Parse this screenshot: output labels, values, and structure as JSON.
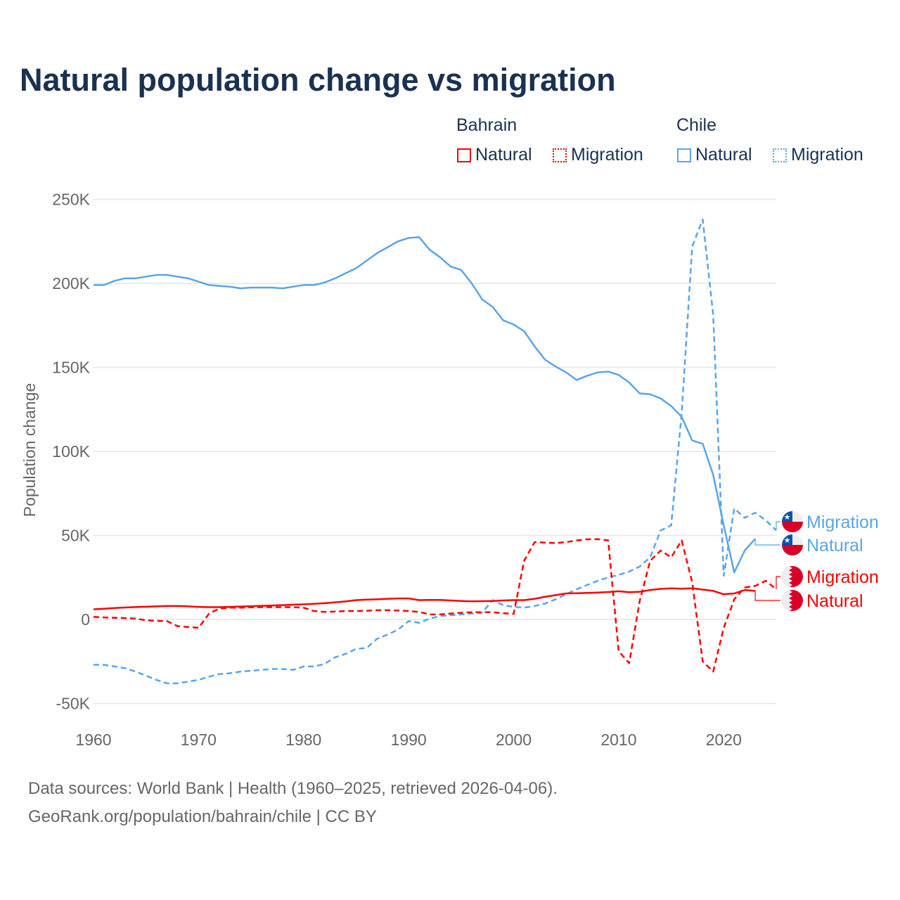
{
  "title": "Natural population change vs migration",
  "legend": {
    "groups": [
      {
        "name": "Bahrain",
        "color": "#ff0000",
        "items": [
          "Natural",
          "Migration"
        ]
      },
      {
        "name": "Chile",
        "color": "#5aa5e8",
        "items": [
          "Natural",
          "Migration"
        ]
      }
    ]
  },
  "footer": {
    "line1": "Data sources: World Bank | Health (1960–2025, retrieved 2026-04-06).",
    "line2": "GeoRank.org/population/bahrain/chile | CC BY"
  },
  "chart_data": {
    "type": "line",
    "title": "Natural population change vs migration",
    "xlabel": "",
    "ylabel": "Population change",
    "xlim": [
      1960,
      2025
    ],
    "ylim": [
      -50000,
      250000
    ],
    "x_ticks": [
      "1960",
      "1970",
      "1980",
      "1990",
      "2000",
      "2010",
      "2020"
    ],
    "y_ticks": [
      {
        "v": -50000,
        "label": "-50K"
      },
      {
        "v": 0,
        "label": "0"
      },
      {
        "v": 50000,
        "label": "50K"
      },
      {
        "v": 100000,
        "label": "100K"
      },
      {
        "v": 150000,
        "label": "150K"
      },
      {
        "v": 200000,
        "label": "200K"
      },
      {
        "v": 250000,
        "label": "250K"
      }
    ],
    "grid": true,
    "series": [
      {
        "name": "Chile Natural",
        "country": "Chile",
        "kind": "Natural",
        "color": "#5aa5e8",
        "dash": false,
        "start": 1960,
        "end_label": "Natural",
        "values": [
          199,
          199,
          201.5,
          203,
          203,
          204,
          205,
          205,
          204,
          203,
          201,
          199,
          198.5,
          198,
          197,
          197.5,
          197.5,
          197.5,
          197,
          198,
          199,
          199,
          200.5,
          203,
          206,
          209,
          213.5,
          218,
          221.5,
          225,
          227,
          227.5,
          220,
          215.5,
          210,
          208,
          200,
          190.5,
          186,
          178,
          175.5,
          171.5,
          162.5,
          154.5,
          150.5,
          147,
          142.5,
          145,
          147,
          147.5,
          145.5,
          141,
          134.5,
          134,
          131.5,
          127,
          120.5,
          106.5,
          104.5,
          86,
          56,
          28,
          41,
          48
        ]
      },
      {
        "name": "Chile Migration",
        "country": "Chile",
        "kind": "Migration",
        "color": "#5aa5e8",
        "dash": true,
        "start": 1960,
        "end_label": "Migration",
        "values": [
          -27,
          -27,
          -28,
          -29,
          -31,
          -33.5,
          -36,
          -38,
          -38,
          -37,
          -36,
          -34,
          -32.5,
          -32,
          -31,
          -30.5,
          -30,
          -29.5,
          -29.5,
          -30,
          -28,
          -28,
          -26.5,
          -22.5,
          -20.5,
          -17.5,
          -17,
          -11.5,
          -9,
          -6,
          -1,
          -2,
          0.5,
          2,
          2.5,
          3,
          3.5,
          4,
          11.5,
          8.5,
          7.5,
          7,
          8,
          9.5,
          12,
          15,
          18,
          20.5,
          23,
          25,
          26.5,
          28.5,
          31.5,
          37,
          53,
          56,
          123,
          222,
          238,
          181,
          26,
          66,
          60.5,
          63.5,
          59,
          53
        ]
      },
      {
        "name": "Bahrain Natural",
        "country": "Bahrain",
        "kind": "Natural",
        "color": "#ff0000",
        "dash": false,
        "start": 1960,
        "end_label": "Natural",
        "values": [
          6,
          6.4,
          6.8,
          7.1,
          7.4,
          7.6,
          7.8,
          8,
          8,
          7.8,
          7.5,
          7.3,
          7.3,
          7.5,
          7.7,
          7.9,
          8.1,
          8.3,
          8.5,
          8.8,
          9,
          9.3,
          9.7,
          10.2,
          10.7,
          11.5,
          11.8,
          12,
          12.3,
          12.5,
          12.5,
          11.5,
          11.6,
          11.6,
          11.3,
          11,
          10.8,
          10.9,
          11,
          11.3,
          11.5,
          11.5,
          12.3,
          13.5,
          14.5,
          15.5,
          15.6,
          15.8,
          16,
          16.3,
          16.8,
          16.2,
          16.5,
          17.5,
          18.2,
          18.5,
          18.3,
          18.5,
          17.8,
          17,
          15,
          15.5,
          17.5,
          17
        ]
      },
      {
        "name": "Bahrain Migration",
        "country": "Bahrain",
        "kind": "Migration",
        "color": "#ff0000",
        "dash": true,
        "start": 1960,
        "end_label": "Migration",
        "values": [
          1.5,
          1.2,
          1,
          0.8,
          0.5,
          -0.5,
          -0.8,
          -1,
          -4,
          -4.5,
          -5,
          3.5,
          6.5,
          7,
          7,
          7.2,
          7.3,
          7.3,
          7.3,
          7.3,
          7,
          5,
          4.5,
          4.7,
          5,
          5,
          5.2,
          5.5,
          5.5,
          5.3,
          5,
          4.5,
          3,
          3,
          3.5,
          4,
          4.3,
          4.3,
          4.3,
          3.7,
          3.3,
          35,
          46,
          45.7,
          45.5,
          46,
          47,
          47.7,
          47.8,
          47,
          -19,
          -26,
          11,
          35,
          41,
          37,
          47,
          22,
          -25,
          -31,
          -5,
          12,
          19,
          20,
          23,
          18
        ]
      }
    ],
    "value_unit": "thousands"
  }
}
